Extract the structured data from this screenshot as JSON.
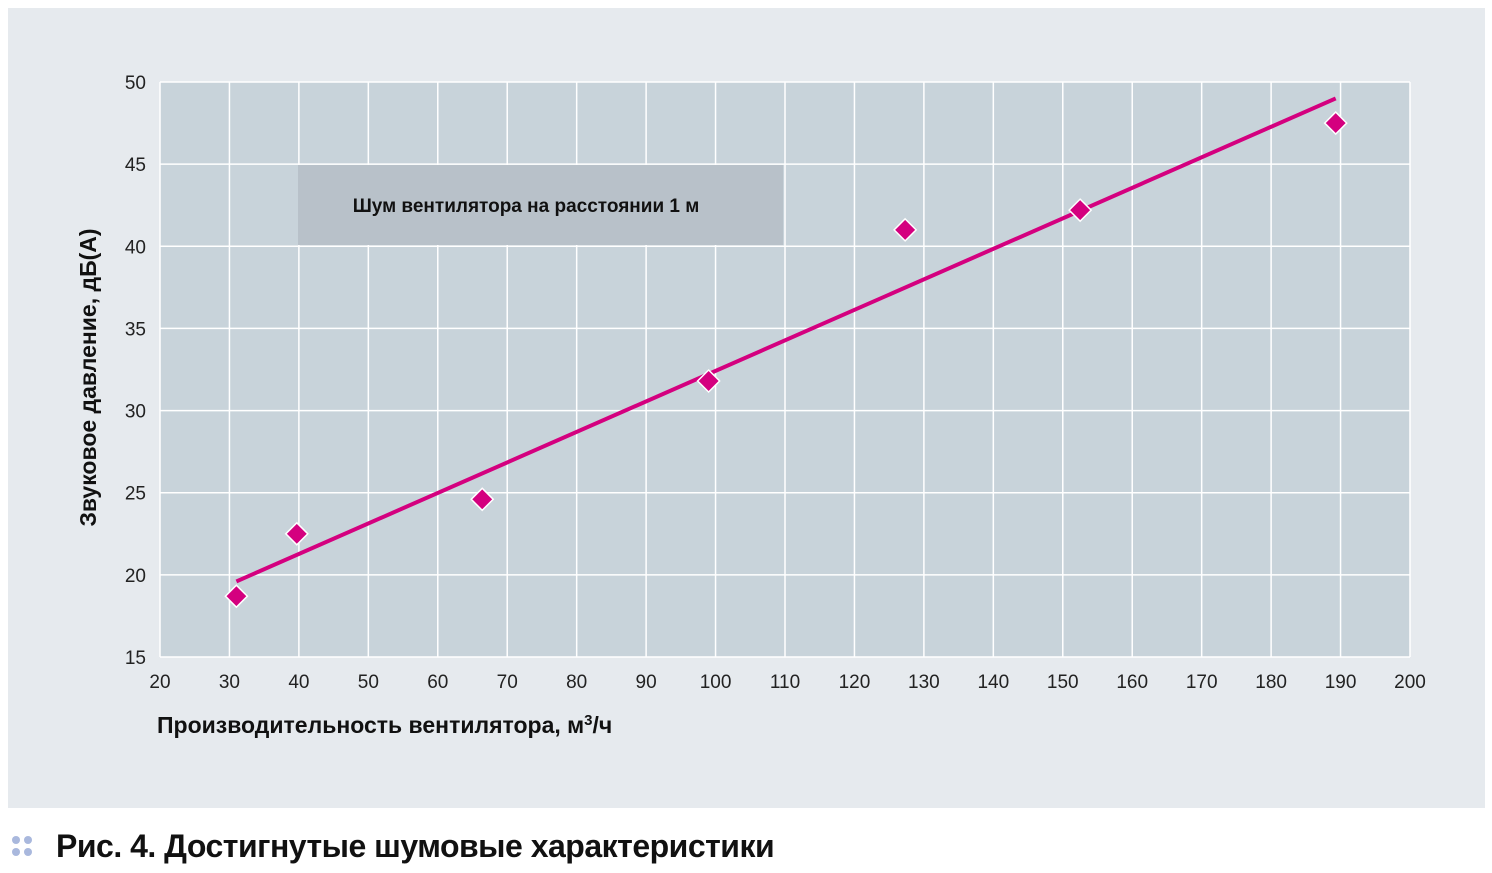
{
  "chart_data": {
    "type": "scatter",
    "title": "",
    "xlabel": "Производительность вентилятора, м",
    "xlabel_sup": "3",
    "xlabel_suffix": "/ч",
    "ylabel": "Звуковое давление, дБ(А)",
    "xlim": [
      20,
      200
    ],
    "ylim": [
      15,
      50
    ],
    "xticks": [
      20,
      30,
      40,
      50,
      60,
      70,
      80,
      90,
      100,
      110,
      120,
      130,
      140,
      150,
      160,
      170,
      180,
      190,
      200
    ],
    "yticks": [
      15,
      20,
      25,
      30,
      35,
      40,
      45,
      50
    ],
    "grid": true,
    "annotation": "Шум вентилятора на расстоянии 1 м",
    "series": [
      {
        "type": "scatter",
        "marker": "diamond",
        "color": "#d4007f",
        "points": [
          {
            "x": 31,
            "y": 18.7
          },
          {
            "x": 39.7,
            "y": 22.5
          },
          {
            "x": 66.4,
            "y": 24.6
          },
          {
            "x": 99,
            "y": 31.8
          },
          {
            "x": 127.3,
            "y": 41
          },
          {
            "x": 152.5,
            "y": 42.2
          },
          {
            "x": 189.3,
            "y": 47.5
          }
        ]
      },
      {
        "type": "line",
        "color": "#d4007f",
        "points": [
          {
            "x": 31,
            "y": 19.6
          },
          {
            "x": 189.3,
            "y": 49
          }
        ]
      }
    ],
    "colors": {
      "plot_bg": "#c8d3da",
      "panel_bg": "#e6eaee",
      "grid": "#ffffff",
      "note_bg": "#b8c1c9",
      "accent": "#d4007f"
    }
  },
  "caption": {
    "label": "Рис. 4.",
    "text": "Достигнутые шумовые характеристики"
  }
}
